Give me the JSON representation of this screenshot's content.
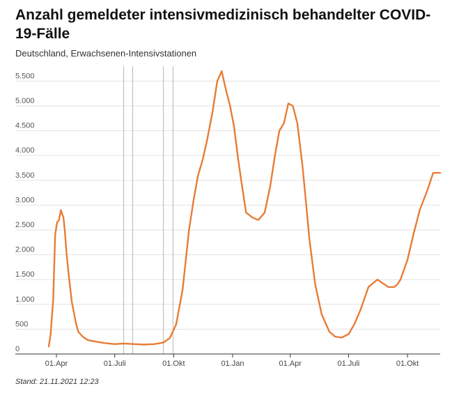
{
  "title": "Anzahl gemeldeter intensivmedizinisch behandelter COVID-19-Fälle",
  "subtitle": "Deutschland, Erwachsenen-Intensivstationen",
  "footer": "Stand: 21.11.2021 12:23",
  "colors": {
    "line": "#e87c34",
    "grid": "#e3e3e3",
    "marker": "#b5b5b5",
    "axis": "#333333"
  },
  "chart_data": {
    "type": "line",
    "title": "Anzahl gemeldeter intensivmedizinisch behandelter COVID-19-Fälle",
    "subtitle": "Deutschland, Erwachsenen-Intensivstationen",
    "ylim": [
      0,
      5800
    ],
    "yticks": [
      0,
      500,
      1000,
      1500,
      2000,
      2500,
      3000,
      3500,
      4000,
      4500,
      5000,
      5500
    ],
    "ytick_labels": [
      "0",
      "500",
      "1.000",
      "1.500",
      "2.000",
      "2.500",
      "3.000",
      "3.500",
      "4.000",
      "4.500",
      "5.000",
      "5.500"
    ],
    "xlim": [
      "2020-03-20",
      "2021-11-21"
    ],
    "xticks": [
      "2020-04-01",
      "2020-07-01",
      "2020-10-01",
      "2021-01-01",
      "2021-04-01",
      "2021-07-01",
      "2021-10-01"
    ],
    "xtick_labels": [
      "01.Apr",
      "01.Juli",
      "01.Okt",
      "01.Jan",
      "01.Apr",
      "01.Juli",
      "01.Okt"
    ],
    "vertical_markers": [
      "2020-07-15",
      "2020-07-29",
      "2020-09-15",
      "2020-09-30"
    ],
    "grid": true,
    "series": [
      {
        "name": "",
        "x": [
          "2020-03-20",
          "2020-03-23",
          "2020-03-27",
          "2020-03-30",
          "2020-04-02",
          "2020-04-05",
          "2020-04-08",
          "2020-04-12",
          "2020-04-14",
          "2020-04-17",
          "2020-04-21",
          "2020-04-25",
          "2020-05-01",
          "2020-05-05",
          "2020-05-12",
          "2020-05-20",
          "2020-06-01",
          "2020-06-15",
          "2020-07-01",
          "2020-07-15",
          "2020-08-01",
          "2020-08-15",
          "2020-09-01",
          "2020-09-15",
          "2020-09-25",
          "2020-10-05",
          "2020-10-15",
          "2020-10-25",
          "2020-11-01",
          "2020-11-08",
          "2020-11-15",
          "2020-11-22",
          "2020-12-01",
          "2020-12-08",
          "2020-12-15",
          "2020-12-22",
          "2020-12-28",
          "2021-01-03",
          "2021-01-06",
          "2021-01-10",
          "2021-01-15",
          "2021-01-22",
          "2021-02-01",
          "2021-02-10",
          "2021-02-20",
          "2021-03-01",
          "2021-03-08",
          "2021-03-15",
          "2021-03-22",
          "2021-03-29",
          "2021-04-05",
          "2021-04-12",
          "2021-04-20",
          "2021-04-26",
          "2021-05-01",
          "2021-05-10",
          "2021-05-20",
          "2021-06-01",
          "2021-06-10",
          "2021-06-20",
          "2021-07-01",
          "2021-07-10",
          "2021-07-20",
          "2021-08-01",
          "2021-08-15",
          "2021-09-01",
          "2021-09-10",
          "2021-09-15",
          "2021-09-20",
          "2021-10-01",
          "2021-10-10",
          "2021-10-20",
          "2021-11-01",
          "2021-11-10",
          "2021-11-21"
        ],
        "values": [
          150,
          400,
          1100,
          2400,
          2650,
          2700,
          2900,
          2750,
          2500,
          2000,
          1500,
          1050,
          650,
          450,
          350,
          280,
          250,
          220,
          200,
          210,
          200,
          190,
          200,
          230,
          320,
          600,
          1300,
          2500,
          3100,
          3600,
          3900,
          4300,
          4900,
          5500,
          5700,
          5300,
          5000,
          4600,
          4300,
          3900,
          3450,
          2850,
          2750,
          2700,
          2850,
          3400,
          4000,
          4500,
          4650,
          5050,
          5000,
          4650,
          3800,
          3000,
          2300,
          1400,
          800,
          450,
          350,
          330,
          400,
          600,
          900,
          1350,
          1500,
          1350,
          1350,
          1400,
          1500,
          1900,
          2400,
          2900,
          3300,
          3650,
          3650
        ]
      }
    ]
  }
}
